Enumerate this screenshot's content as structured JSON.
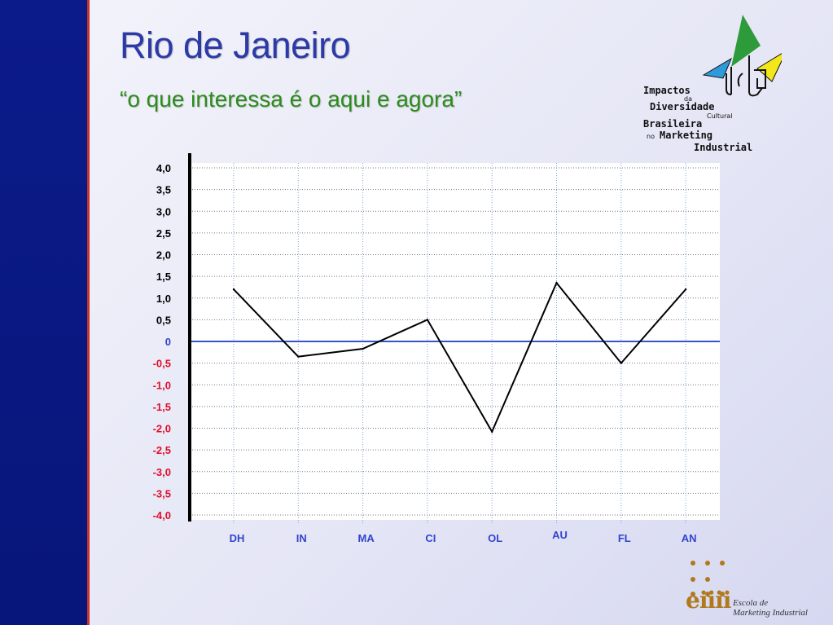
{
  "slide": {
    "title": "Rio de Janeiro",
    "subtitle": "“o que interessa é o aqui e agora”"
  },
  "logo": {
    "word1": "Impactos",
    "word2": "da",
    "word3": "Diversidade",
    "word4": "Cultural",
    "word5": "Brasileira",
    "word6": "no",
    "word7": "Marketing",
    "word8": "Industrial"
  },
  "school": {
    "mark": "eiiii",
    "line1": "Escola de",
    "line2": "Marketing Industrial"
  },
  "colors": {
    "sidebar": "#0b1b8a",
    "title": "#2b3aa6",
    "subtitle": "#2d8c1c",
    "positive_tick": "#000000",
    "negative_tick": "#e0102a",
    "zero_tick": "#3344cc",
    "category_label": "#3344cc",
    "data_line": "#000000",
    "zero_line": "#3355cc"
  },
  "chart_data": {
    "type": "line",
    "categories": [
      "DH",
      "IN",
      "MA",
      "CI",
      "OL",
      "AU",
      "FL",
      "AN"
    ],
    "values": [
      1.2,
      -0.35,
      -0.17,
      0.5,
      -2.08,
      1.35,
      -0.5,
      1.2
    ],
    "ylim": [
      -4.0,
      4.0
    ],
    "yticks": [
      4.0,
      3.5,
      3.0,
      2.5,
      2.0,
      1.5,
      1.0,
      0.5,
      0,
      -0.5,
      -1.0,
      -1.5,
      -2.0,
      -2.5,
      -3.0,
      -3.5,
      -4.0
    ],
    "ytick_labels": [
      "4,0",
      "3,5",
      "3,0",
      "2,5",
      "2,0",
      "1,5",
      "1,0",
      "0,5",
      "0",
      "-0,5",
      "-1,0",
      "-1,5",
      "-2,0",
      "-2,5",
      "-3,0",
      "-3,5",
      "-4,0"
    ],
    "grid": true,
    "legend": "none"
  }
}
